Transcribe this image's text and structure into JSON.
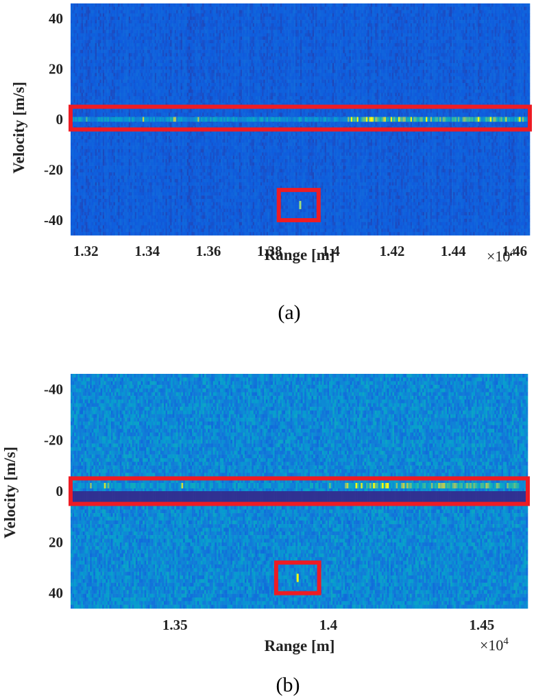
{
  "charts": [
    {
      "id": "a",
      "chart_data": {
        "type": "heatmap",
        "title": "",
        "xlabel": "Range [m]",
        "ylabel": "Velocity [m/s]",
        "x_multiplier": "×10",
        "x_multiplier_exp": "4",
        "xlim": [
          1.315,
          1.465
        ],
        "ylim": [
          -46,
          46
        ],
        "y_direction": "normal",
        "x_ticks": [
          1.32,
          1.34,
          1.36,
          1.38,
          1.4,
          1.42,
          1.44,
          1.46
        ],
        "x_tick_labels": [
          "1.32",
          "1.34",
          "1.36",
          "1.38",
          "1.4",
          "1.42",
          "1.44",
          "1.46"
        ],
        "y_ticks": [
          40,
          20,
          0,
          -20,
          -40
        ],
        "y_tick_labels": [
          "40",
          "20",
          "0",
          "-20",
          "-40"
        ],
        "colormap": "parula",
        "clutter_band_velocity": 0,
        "target": {
          "range": 1.39,
          "velocity": -34
        },
        "highlights": [
          {
            "x": [
              1.315,
              1.465
            ],
            "y": [
              -4,
              5
            ]
          },
          {
            "x": [
              1.383,
              1.396
            ],
            "y": [
              -40,
              -28
            ]
          }
        ]
      },
      "caption": "(a)"
    },
    {
      "id": "b",
      "chart_data": {
        "type": "heatmap",
        "title": "",
        "xlabel": "Range [m]",
        "ylabel": "Velocity [m/s]",
        "x_multiplier": "×10",
        "x_multiplier_exp": "4",
        "xlim": [
          1.316,
          1.465
        ],
        "ylim": [
          -46,
          46
        ],
        "y_direction": "reversed",
        "x_ticks": [
          1.35,
          1.4,
          1.45
        ],
        "x_tick_labels": [
          "1.35",
          "1.4",
          "1.45"
        ],
        "y_ticks": [
          -40,
          -20,
          0,
          20,
          40
        ],
        "y_tick_labels": [
          "-40",
          "-20",
          "0",
          "20",
          "40"
        ],
        "colormap": "parula",
        "clutter_band_velocity": 0,
        "target": {
          "range": 1.39,
          "velocity": 34
        },
        "highlights": [
          {
            "x": [
              1.316,
              1.465
            ],
            "y": [
              -5,
              5
            ]
          },
          {
            "x": [
              1.383,
              1.397
            ],
            "y": [
              28,
              40
            ]
          }
        ]
      },
      "caption": "(b)"
    }
  ],
  "colors": {
    "highlight": "#ee1c24",
    "axis_text": "#222222"
  }
}
